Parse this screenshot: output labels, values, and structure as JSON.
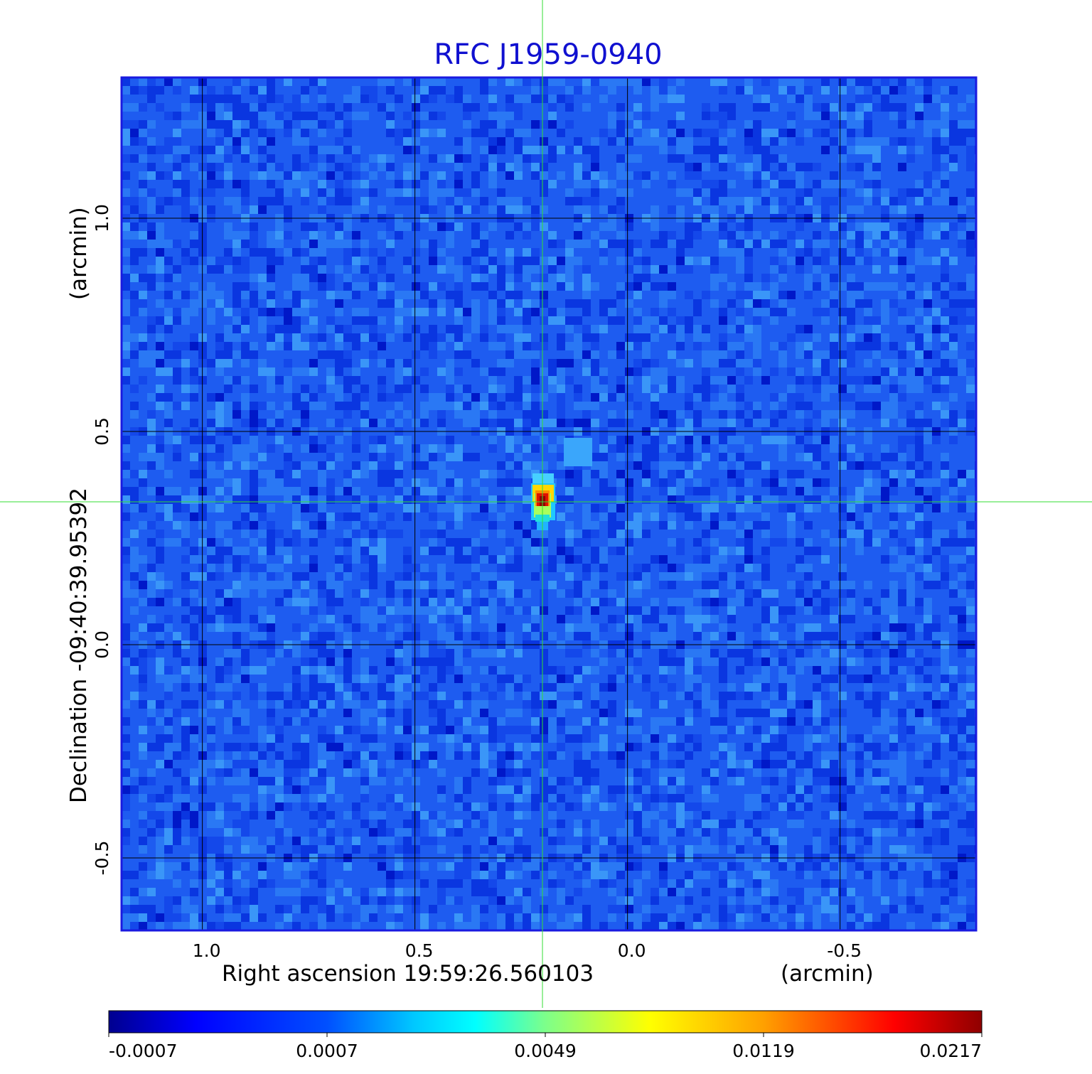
{
  "chart_data": {
    "type": "heatmap",
    "title": "RFC J1959-0940",
    "xlabel": "Right ascension  19:59:26.560103",
    "xunit": "(arcmin)",
    "ylabel": "Declination  -09:40:39.95392",
    "yunit": "(arcmin)",
    "x_ticks": [
      "1.0",
      "0.5",
      "0.0",
      "-0.5"
    ],
    "y_ticks": [
      "1.0",
      "0.5",
      "0.0",
      "-0.5"
    ],
    "xlim": [
      1.19,
      -0.82
    ],
    "ylim": [
      -0.67,
      1.33
    ],
    "grid": true,
    "crosshair": {
      "x": 0.2,
      "y": 0.335
    },
    "peak": {
      "x": 0.2,
      "y": 0.335,
      "value": 0.0217
    },
    "colorbar": {
      "ticks": [
        "-0.0007",
        "0.0007",
        "0.0049",
        "0.0119",
        "0.0217"
      ],
      "colormap": "jet"
    },
    "colors": {
      "title": "#1010d0",
      "frame": "#1a1ae0",
      "crosshair": "#33dd33",
      "background_field": "#1e5cf0"
    }
  }
}
